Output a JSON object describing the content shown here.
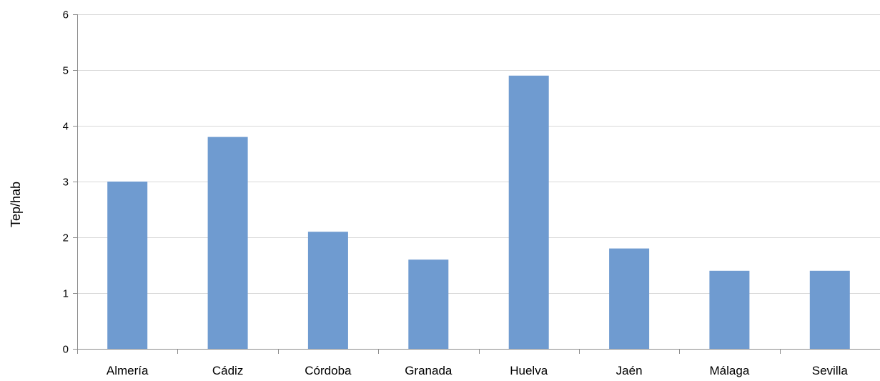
{
  "chart_data": {
    "type": "bar",
    "title": "",
    "xlabel": "",
    "ylabel": "Tep/hab",
    "ylim": [
      0,
      6
    ],
    "yticks": [
      0,
      1,
      2,
      3,
      4,
      5,
      6
    ],
    "grid": true,
    "legend": "none",
    "categories": [
      "Almería",
      "Cádiz",
      "Córdoba",
      "Granada",
      "Huelva",
      "Jaén",
      "Málaga",
      "Sevilla"
    ],
    "values": [
      3.0,
      3.8,
      2.1,
      1.6,
      4.9,
      1.8,
      1.4,
      1.4
    ],
    "colors": {
      "bar": "#6f9bd0",
      "grid": "#d9d9d9",
      "axis": "#8c8c8c"
    }
  }
}
